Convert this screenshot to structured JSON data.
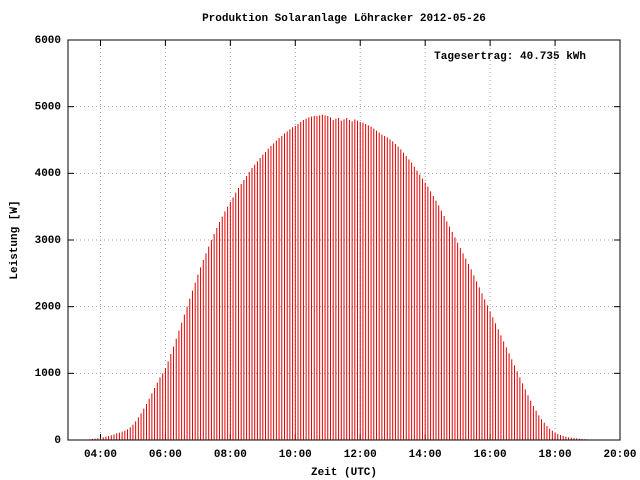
{
  "chart_data": {
    "type": "impulse",
    "title": "Produktion Solaranlage Löhracker 2012-05-26",
    "annotation": "Tagesertrag: 40.735 kWh",
    "xlabel": "Zeit (UTC)",
    "ylabel": "Leistung [W]",
    "color": "#dd0000",
    "grid": true,
    "xlim": [
      "03:00",
      "20:00"
    ],
    "xticks": [
      "04:00",
      "06:00",
      "08:00",
      "10:00",
      "12:00",
      "14:00",
      "16:00",
      "18:00",
      "20:00"
    ],
    "ylim": [
      0,
      6000
    ],
    "yticks": [
      0,
      1000,
      2000,
      3000,
      4000,
      5000,
      6000
    ],
    "x": [
      "03:35",
      "03:40",
      "03:45",
      "03:50",
      "03:55",
      "04:00",
      "04:05",
      "04:10",
      "04:15",
      "04:20",
      "04:25",
      "04:30",
      "04:35",
      "04:40",
      "04:45",
      "04:50",
      "04:55",
      "05:00",
      "05:05",
      "05:10",
      "05:15",
      "05:20",
      "05:25",
      "05:30",
      "05:35",
      "05:40",
      "05:45",
      "05:50",
      "05:55",
      "06:00",
      "06:05",
      "06:10",
      "06:15",
      "06:20",
      "06:25",
      "06:30",
      "06:35",
      "06:40",
      "06:45",
      "06:50",
      "06:55",
      "07:00",
      "07:05",
      "07:10",
      "07:15",
      "07:20",
      "07:25",
      "07:30",
      "07:35",
      "07:40",
      "07:45",
      "07:50",
      "07:55",
      "08:00",
      "08:05",
      "08:10",
      "08:15",
      "08:20",
      "08:25",
      "08:30",
      "08:35",
      "08:40",
      "08:45",
      "08:50",
      "08:55",
      "09:00",
      "09:05",
      "09:10",
      "09:15",
      "09:20",
      "09:25",
      "09:30",
      "09:35",
      "09:40",
      "09:45",
      "09:50",
      "09:55",
      "10:00",
      "10:05",
      "10:10",
      "10:15",
      "10:20",
      "10:25",
      "10:30",
      "10:35",
      "10:40",
      "10:45",
      "10:50",
      "10:55",
      "11:00",
      "11:05",
      "11:10",
      "11:15",
      "11:20",
      "11:25",
      "11:30",
      "11:35",
      "11:40",
      "11:45",
      "11:50",
      "11:55",
      "12:00",
      "12:05",
      "12:10",
      "12:15",
      "12:20",
      "12:25",
      "12:30",
      "12:35",
      "12:40",
      "12:45",
      "12:50",
      "12:55",
      "13:00",
      "13:05",
      "13:10",
      "13:15",
      "13:20",
      "13:25",
      "13:30",
      "13:35",
      "13:40",
      "13:45",
      "13:50",
      "13:55",
      "14:00",
      "14:05",
      "14:10",
      "14:15",
      "14:20",
      "14:25",
      "14:30",
      "14:35",
      "14:40",
      "14:45",
      "14:50",
      "14:55",
      "15:00",
      "15:05",
      "15:10",
      "15:15",
      "15:20",
      "15:25",
      "15:30",
      "15:35",
      "15:40",
      "15:45",
      "15:50",
      "15:55",
      "16:00",
      "16:05",
      "16:10",
      "16:15",
      "16:20",
      "16:25",
      "16:30",
      "16:35",
      "16:40",
      "16:45",
      "16:50",
      "16:55",
      "17:00",
      "17:05",
      "17:10",
      "17:15",
      "17:20",
      "17:25",
      "17:30",
      "17:35",
      "17:40",
      "17:45",
      "17:50",
      "17:55",
      "18:00",
      "18:05",
      "18:10",
      "18:15",
      "18:20",
      "18:25",
      "18:30",
      "18:35",
      "18:40",
      "18:45",
      "18:50",
      "18:55",
      "19:00",
      "19:05",
      "19:10",
      "19:15",
      "19:20",
      "19:25"
    ],
    "values": [
      5,
      10,
      15,
      20,
      25,
      30,
      40,
      50,
      60,
      70,
      85,
      100,
      110,
      125,
      140,
      160,
      190,
      230,
      280,
      340,
      400,
      470,
      540,
      620,
      700,
      780,
      860,
      940,
      1000,
      1080,
      1180,
      1290,
      1400,
      1520,
      1640,
      1760,
      1880,
      2000,
      2120,
      2240,
      2360,
      2480,
      2590,
      2700,
      2800,
      2900,
      3000,
      3090,
      3180,
      3270,
      3350,
      3430,
      3500,
      3570,
      3640,
      3710,
      3780,
      3840,
      3900,
      3960,
      4020,
      4080,
      4130,
      4180,
      4230,
      4280,
      4320,
      4370,
      4410,
      4450,
      4490,
      4530,
      4560,
      4600,
      4630,
      4660,
      4690,
      4710,
      4740,
      4770,
      4800,
      4820,
      4840,
      4850,
      4860,
      4860,
      4870,
      4880,
      4870,
      4860,
      4840,
      4800,
      4820,
      4830,
      4790,
      4810,
      4830,
      4800,
      4780,
      4810,
      4790,
      4770,
      4760,
      4740,
      4720,
      4700,
      4670,
      4640,
      4610,
      4580,
      4560,
      4540,
      4510,
      4480,
      4440,
      4400,
      4360,
      4310,
      4260,
      4210,
      4160,
      4100,
      4040,
      3980,
      3920,
      3860,
      3800,
      3730,
      3660,
      3590,
      3520,
      3440,
      3360,
      3280,
      3200,
      3120,
      3040,
      2960,
      2880,
      2800,
      2720,
      2640,
      2560,
      2470,
      2380,
      2290,
      2200,
      2110,
      2020,
      1930,
      1840,
      1750,
      1660,
      1570,
      1480,
      1390,
      1300,
      1210,
      1120,
      1030,
      940,
      850,
      760,
      670,
      590,
      510,
      440,
      370,
      310,
      260,
      210,
      170,
      140,
      110,
      90,
      75,
      60,
      50,
      40,
      35,
      30,
      25,
      20,
      15,
      12,
      10,
      8,
      6,
      5,
      4,
      3
    ]
  }
}
